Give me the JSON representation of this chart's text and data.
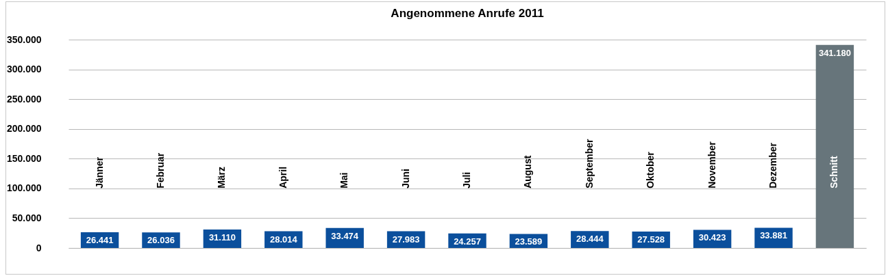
{
  "chart_data": {
    "type": "bar",
    "title": "Angenommene Anrufe 2011",
    "categories": [
      "Jänner",
      "Februar",
      "März",
      "April",
      "Mai",
      "Juni",
      "Juli",
      "August",
      "September",
      "Oktober",
      "November",
      "Dezember",
      "Schnitt"
    ],
    "values": [
      26441,
      26036,
      31110,
      28014,
      33474,
      27983,
      24257,
      23589,
      28444,
      27528,
      30423,
      33881,
      341180
    ],
    "value_labels": [
      "26.441",
      "26.036",
      "31.110",
      "28.014",
      "33.474",
      "27.983",
      "24.257",
      "23.589",
      "28.444",
      "27.528",
      "30.423",
      "33.881",
      "341.180"
    ],
    "colors": [
      "#0b4f9c",
      "#0b4f9c",
      "#0b4f9c",
      "#0b4f9c",
      "#0b4f9c",
      "#0b4f9c",
      "#0b4f9c",
      "#0b4f9c",
      "#0b4f9c",
      "#0b4f9c",
      "#0b4f9c",
      "#0b4f9c",
      "#67757b"
    ],
    "ylim": [
      0,
      350000
    ],
    "yticks": [
      {
        "value": 0,
        "label": "0"
      },
      {
        "value": 50000,
        "label": "50.000"
      },
      {
        "value": 100000,
        "label": "100.000"
      },
      {
        "value": 150000,
        "label": "150.000"
      },
      {
        "value": 200000,
        "label": "200.000"
      },
      {
        "value": 250000,
        "label": "250.000"
      },
      {
        "value": 300000,
        "label": "300.000"
      },
      {
        "value": 350000,
        "label": "350.000"
      }
    ],
    "grid": "y"
  }
}
